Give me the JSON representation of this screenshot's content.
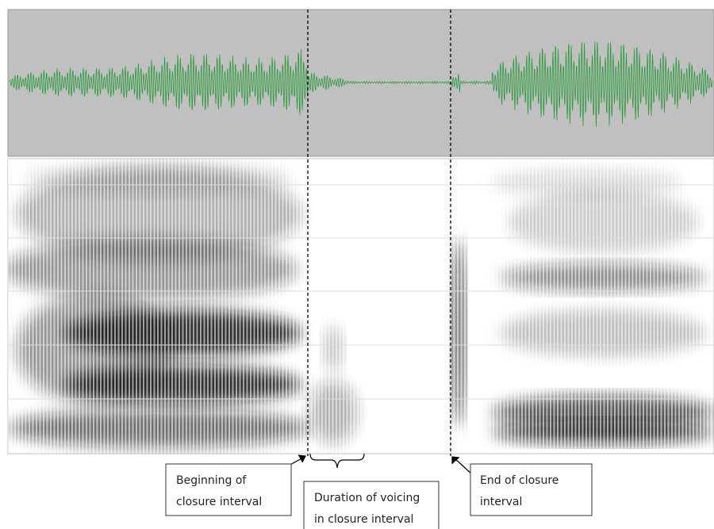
{
  "annotations": [
    {
      "lines": [
        "Beginning of",
        "closure interval"
      ]
    },
    {
      "lines": [
        "Duration of voicing",
        "in closure interval"
      ]
    },
    {
      "lines": [
        "End of closure",
        "interval"
      ]
    }
  ]
}
